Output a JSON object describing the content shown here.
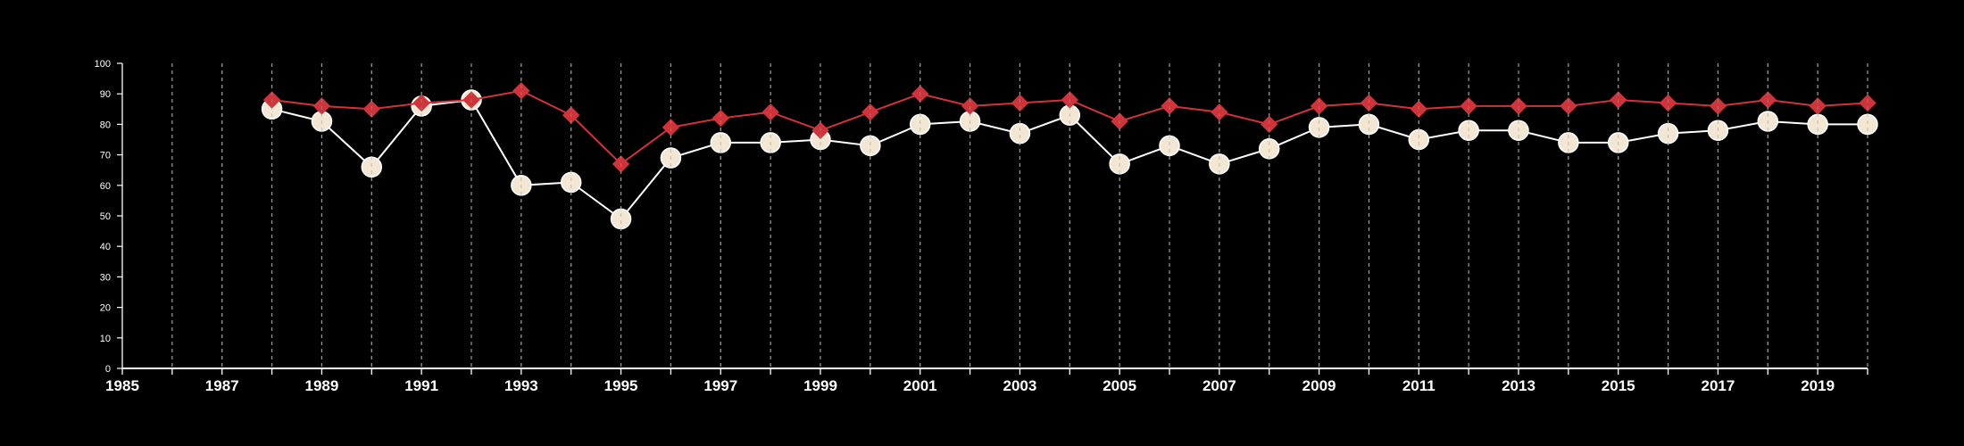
{
  "chart_data": {
    "type": "line",
    "title": "",
    "xlabel": "",
    "ylabel": "",
    "xlim": [
      1985,
      2020
    ],
    "ylim": [
      0,
      100
    ],
    "y_ticks": [
      0,
      10,
      20,
      30,
      40,
      50,
      60,
      70,
      80,
      90,
      100
    ],
    "x_tick_labels": [
      1985,
      1987,
      1989,
      1991,
      1993,
      1995,
      1997,
      1999,
      2001,
      2003,
      2005,
      2007,
      2009,
      2011,
      2013,
      2015,
      2017,
      2019
    ],
    "grid": "vertical-dashed",
    "series": [
      {
        "marker": "diamond",
        "color": "#d0343a",
        "x": [
          1988,
          1989,
          1990,
          1991,
          1992,
          1993,
          1994,
          1995,
          1996,
          1997,
          1998,
          1999,
          2000,
          2001,
          2002,
          2003,
          2004,
          2005,
          2006,
          2007,
          2008,
          2009,
          2010,
          2011,
          2012,
          2013,
          2014,
          2015,
          2016,
          2017,
          2018,
          2019,
          2020
        ],
        "values": [
          88,
          86,
          85,
          87,
          88,
          91,
          83,
          67,
          79,
          82,
          84,
          78,
          84,
          90,
          86,
          87,
          88,
          81,
          86,
          84,
          80,
          86,
          87,
          85,
          86,
          86,
          86,
          88,
          87,
          86,
          88,
          86,
          87
        ]
      },
      {
        "marker": "circle",
        "color": "#f3e6d2",
        "x": [
          1988,
          1989,
          1990,
          1991,
          1992,
          1993,
          1994,
          1995,
          1996,
          1997,
          1998,
          1999,
          2000,
          2001,
          2002,
          2003,
          2004,
          2005,
          2006,
          2007,
          2008,
          2009,
          2010,
          2011,
          2012,
          2013,
          2014,
          2015,
          2016,
          2017,
          2018,
          2019,
          2020
        ],
        "values": [
          85,
          81,
          66,
          86,
          88,
          60,
          61,
          49,
          69,
          74,
          74,
          75,
          73,
          80,
          81,
          77,
          83,
          67,
          73,
          67,
          72,
          79,
          80,
          75,
          78,
          78,
          74,
          74,
          77,
          78,
          81,
          80,
          80
        ]
      }
    ]
  }
}
